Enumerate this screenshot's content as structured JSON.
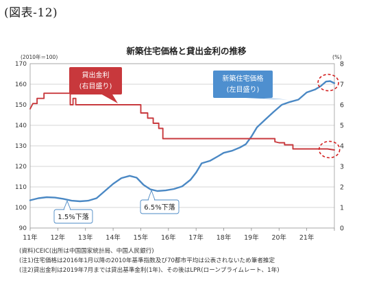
{
  "figure_label": "(図表-12)",
  "chart_data": {
    "type": "line",
    "title": "新築住宅価格と貸出金利の推移",
    "left_unit": "(2010年＝100)",
    "right_unit": "(%)",
    "left_axis": {
      "min": 90,
      "max": 170,
      "ticks": [
        "90",
        "100",
        "110",
        "120",
        "130",
        "140",
        "150",
        "160",
        "170"
      ]
    },
    "right_axis": {
      "min": 0,
      "max": 8,
      "ticks": [
        "0",
        "1",
        "2",
        "3",
        "4",
        "5",
        "6",
        "7",
        "8"
      ]
    },
    "x_axis": {
      "min": 2011,
      "max": 2022,
      "tick_labels": [
        "11年",
        "12年",
        "13年",
        "14年",
        "15年",
        "16年",
        "17年",
        "18年",
        "19年",
        "20年",
        "21年"
      ]
    },
    "grid": true,
    "series": [
      {
        "name": "新築住宅価格(左目盛り)",
        "axis": "left",
        "color": "#4a88c4",
        "points": [
          [
            2011.0,
            103.5
          ],
          [
            2011.3,
            104.5
          ],
          [
            2011.6,
            105
          ],
          [
            2011.9,
            104.8
          ],
          [
            2012.2,
            104.2
          ],
          [
            2012.5,
            103.3
          ],
          [
            2012.8,
            103
          ],
          [
            2013.1,
            103.3
          ],
          [
            2013.4,
            104.5
          ],
          [
            2013.7,
            108
          ],
          [
            2014.0,
            111.5
          ],
          [
            2014.3,
            114.3
          ],
          [
            2014.6,
            115.4
          ],
          [
            2014.85,
            114.5
          ],
          [
            2015.1,
            111
          ],
          [
            2015.35,
            108.8
          ],
          [
            2015.6,
            108
          ],
          [
            2015.9,
            108.3
          ],
          [
            2016.2,
            109
          ],
          [
            2016.5,
            110.3
          ],
          [
            2016.8,
            113.5
          ],
          [
            2017.0,
            117
          ],
          [
            2017.2,
            121.5
          ],
          [
            2017.5,
            122.7
          ],
          [
            2017.8,
            125
          ],
          [
            2018.0,
            126.6
          ],
          [
            2018.3,
            127.6
          ],
          [
            2018.6,
            129.3
          ],
          [
            2018.8,
            130.8
          ],
          [
            2019.0,
            134.5
          ],
          [
            2019.2,
            139
          ],
          [
            2019.5,
            142.8
          ],
          [
            2019.8,
            146.5
          ],
          [
            2020.1,
            150
          ],
          [
            2020.4,
            151.4
          ],
          [
            2020.7,
            152.5
          ],
          [
            2021.0,
            156
          ],
          [
            2021.3,
            157.4
          ],
          [
            2021.5,
            159
          ],
          [
            2021.7,
            161.3
          ],
          [
            2021.85,
            161.5
          ],
          [
            2022.0,
            160.5
          ]
        ]
      },
      {
        "name": "貸出金利(右目盛り)",
        "axis": "right",
        "color": "#c8383c",
        "points": [
          [
            2011.0,
            5.8
          ],
          [
            2011.1,
            6.06
          ],
          [
            2011.25,
            6.06
          ],
          [
            2011.25,
            6.31
          ],
          [
            2011.5,
            6.31
          ],
          [
            2011.5,
            6.56
          ],
          [
            2012.45,
            6.56
          ],
          [
            2012.45,
            6.0
          ],
          [
            2012.55,
            6.0
          ],
          [
            2012.55,
            6.31
          ],
          [
            2012.65,
            6.31
          ],
          [
            2012.65,
            6.0
          ],
          [
            2015.0,
            6.0
          ],
          [
            2015.0,
            5.6
          ],
          [
            2015.25,
            5.6
          ],
          [
            2015.25,
            5.35
          ],
          [
            2015.45,
            5.35
          ],
          [
            2015.45,
            5.1
          ],
          [
            2015.65,
            5.1
          ],
          [
            2015.65,
            4.85
          ],
          [
            2015.8,
            4.85
          ],
          [
            2015.8,
            4.35
          ],
          [
            2019.85,
            4.35
          ],
          [
            2019.85,
            4.2
          ],
          [
            2020.0,
            4.15
          ],
          [
            2020.2,
            4.15
          ],
          [
            2020.2,
            4.05
          ],
          [
            2020.5,
            4.05
          ],
          [
            2020.5,
            3.85
          ],
          [
            2021.75,
            3.85
          ],
          [
            2021.75,
            3.85
          ],
          [
            2022.0,
            3.8
          ]
        ]
      }
    ],
    "annotations": [
      {
        "text": "1.5%下落"
      },
      {
        "text": "6.5%下落"
      }
    ]
  },
  "notes": [
    "(資料)CEIC(出所は中国国家統計局、中国人民銀行)",
    "(注1)住宅価格は2016年1月以降の2010年基準指数及び70都市平均は公表されないため筆者推定",
    "(注2)貸出金利は2019年7月までは貸出基準金利(1年)、その後はLPR(ローンプライムレート、1年)"
  ]
}
